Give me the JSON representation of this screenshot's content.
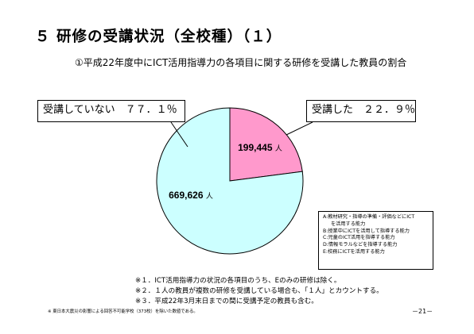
{
  "header": {
    "title": "５ 研修の受講状況（全校種）（１）",
    "subtitle": "①平成22年度中にICT活用指導力の各項目に関する研修を受講した教員の割合"
  },
  "chart_data": {
    "type": "pie",
    "title": "①平成22年度中にICT活用指導力の各項目に関する研修を受講した教員の割合",
    "slices": [
      {
        "label": "受講した　２２．９％",
        "value": 199445,
        "percent": 22.9,
        "value_label": "199,445",
        "unit": "人",
        "color": "#ff99cc"
      },
      {
        "label": "受講していない　７７．１％",
        "value": 669626,
        "percent": 77.1,
        "value_label": "669,626",
        "unit": "人",
        "color": "#ccffff"
      }
    ],
    "start_angle_deg": 0,
    "direction": "clockwise",
    "legend": "right"
  },
  "legend": {
    "items": [
      {
        "text": "A:教材研究・指導の準備・評価などにICT",
        "indent": false
      },
      {
        "text": "を活用する能力",
        "indent": true
      },
      {
        "text": "B:授業中にICTを活用して指導する能力",
        "indent": false
      },
      {
        "text": "C:児童のICT活用を指導する能力",
        "indent": false
      },
      {
        "text": "D:情報モラルなどを指導する能力",
        "indent": false
      },
      {
        "text": "E:校務にICTを活用する能力",
        "indent": false
      }
    ]
  },
  "notes": [
    "※１．ICT活用指導力の状況の各項目のうち、Eのみの研修は除く。",
    "※２．１人の教員が複数の研修を受講している場合も、「１人」とカウントする。",
    "※３．平成22年3月末日までの間に受講予定の教員も含む。"
  ],
  "footer_note": "※ 東日本大震災の影響による回答不可能学校（373校）を除いた数値である。",
  "page_number": "－21－"
}
